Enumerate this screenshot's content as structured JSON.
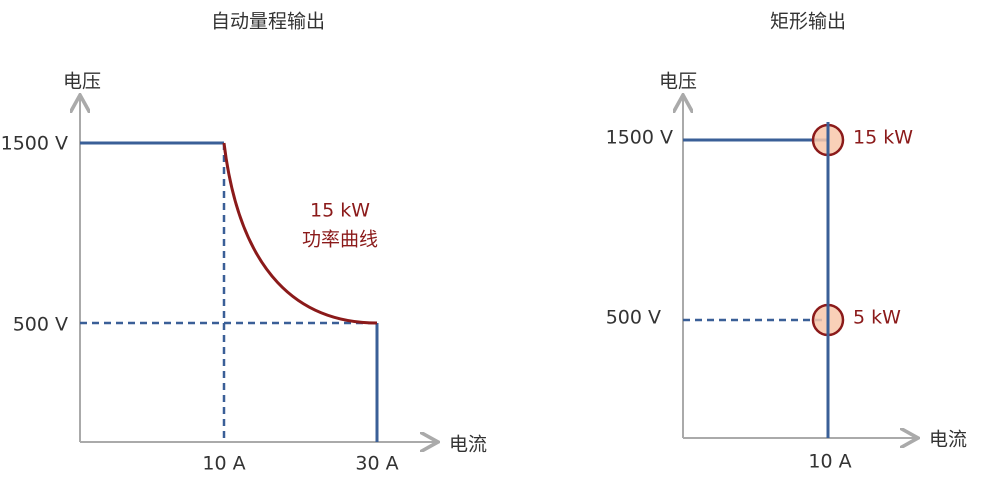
{
  "left": {
    "title": "自动量程输出",
    "y_axis": "电压",
    "x_axis": "电流",
    "y_labels": [
      "1500 V",
      "500 V"
    ],
    "x_labels": [
      "10 A",
      "30 A"
    ],
    "annotation": [
      "15 kW",
      "功率曲线"
    ]
  },
  "right": {
    "title": "矩形输出",
    "y_axis": "电压",
    "x_axis": "电流",
    "y_labels": [
      "1500 V",
      "500 V"
    ],
    "x_labels": [
      "10 A"
    ],
    "annotations": [
      "15 kW",
      "5 kW"
    ]
  }
}
